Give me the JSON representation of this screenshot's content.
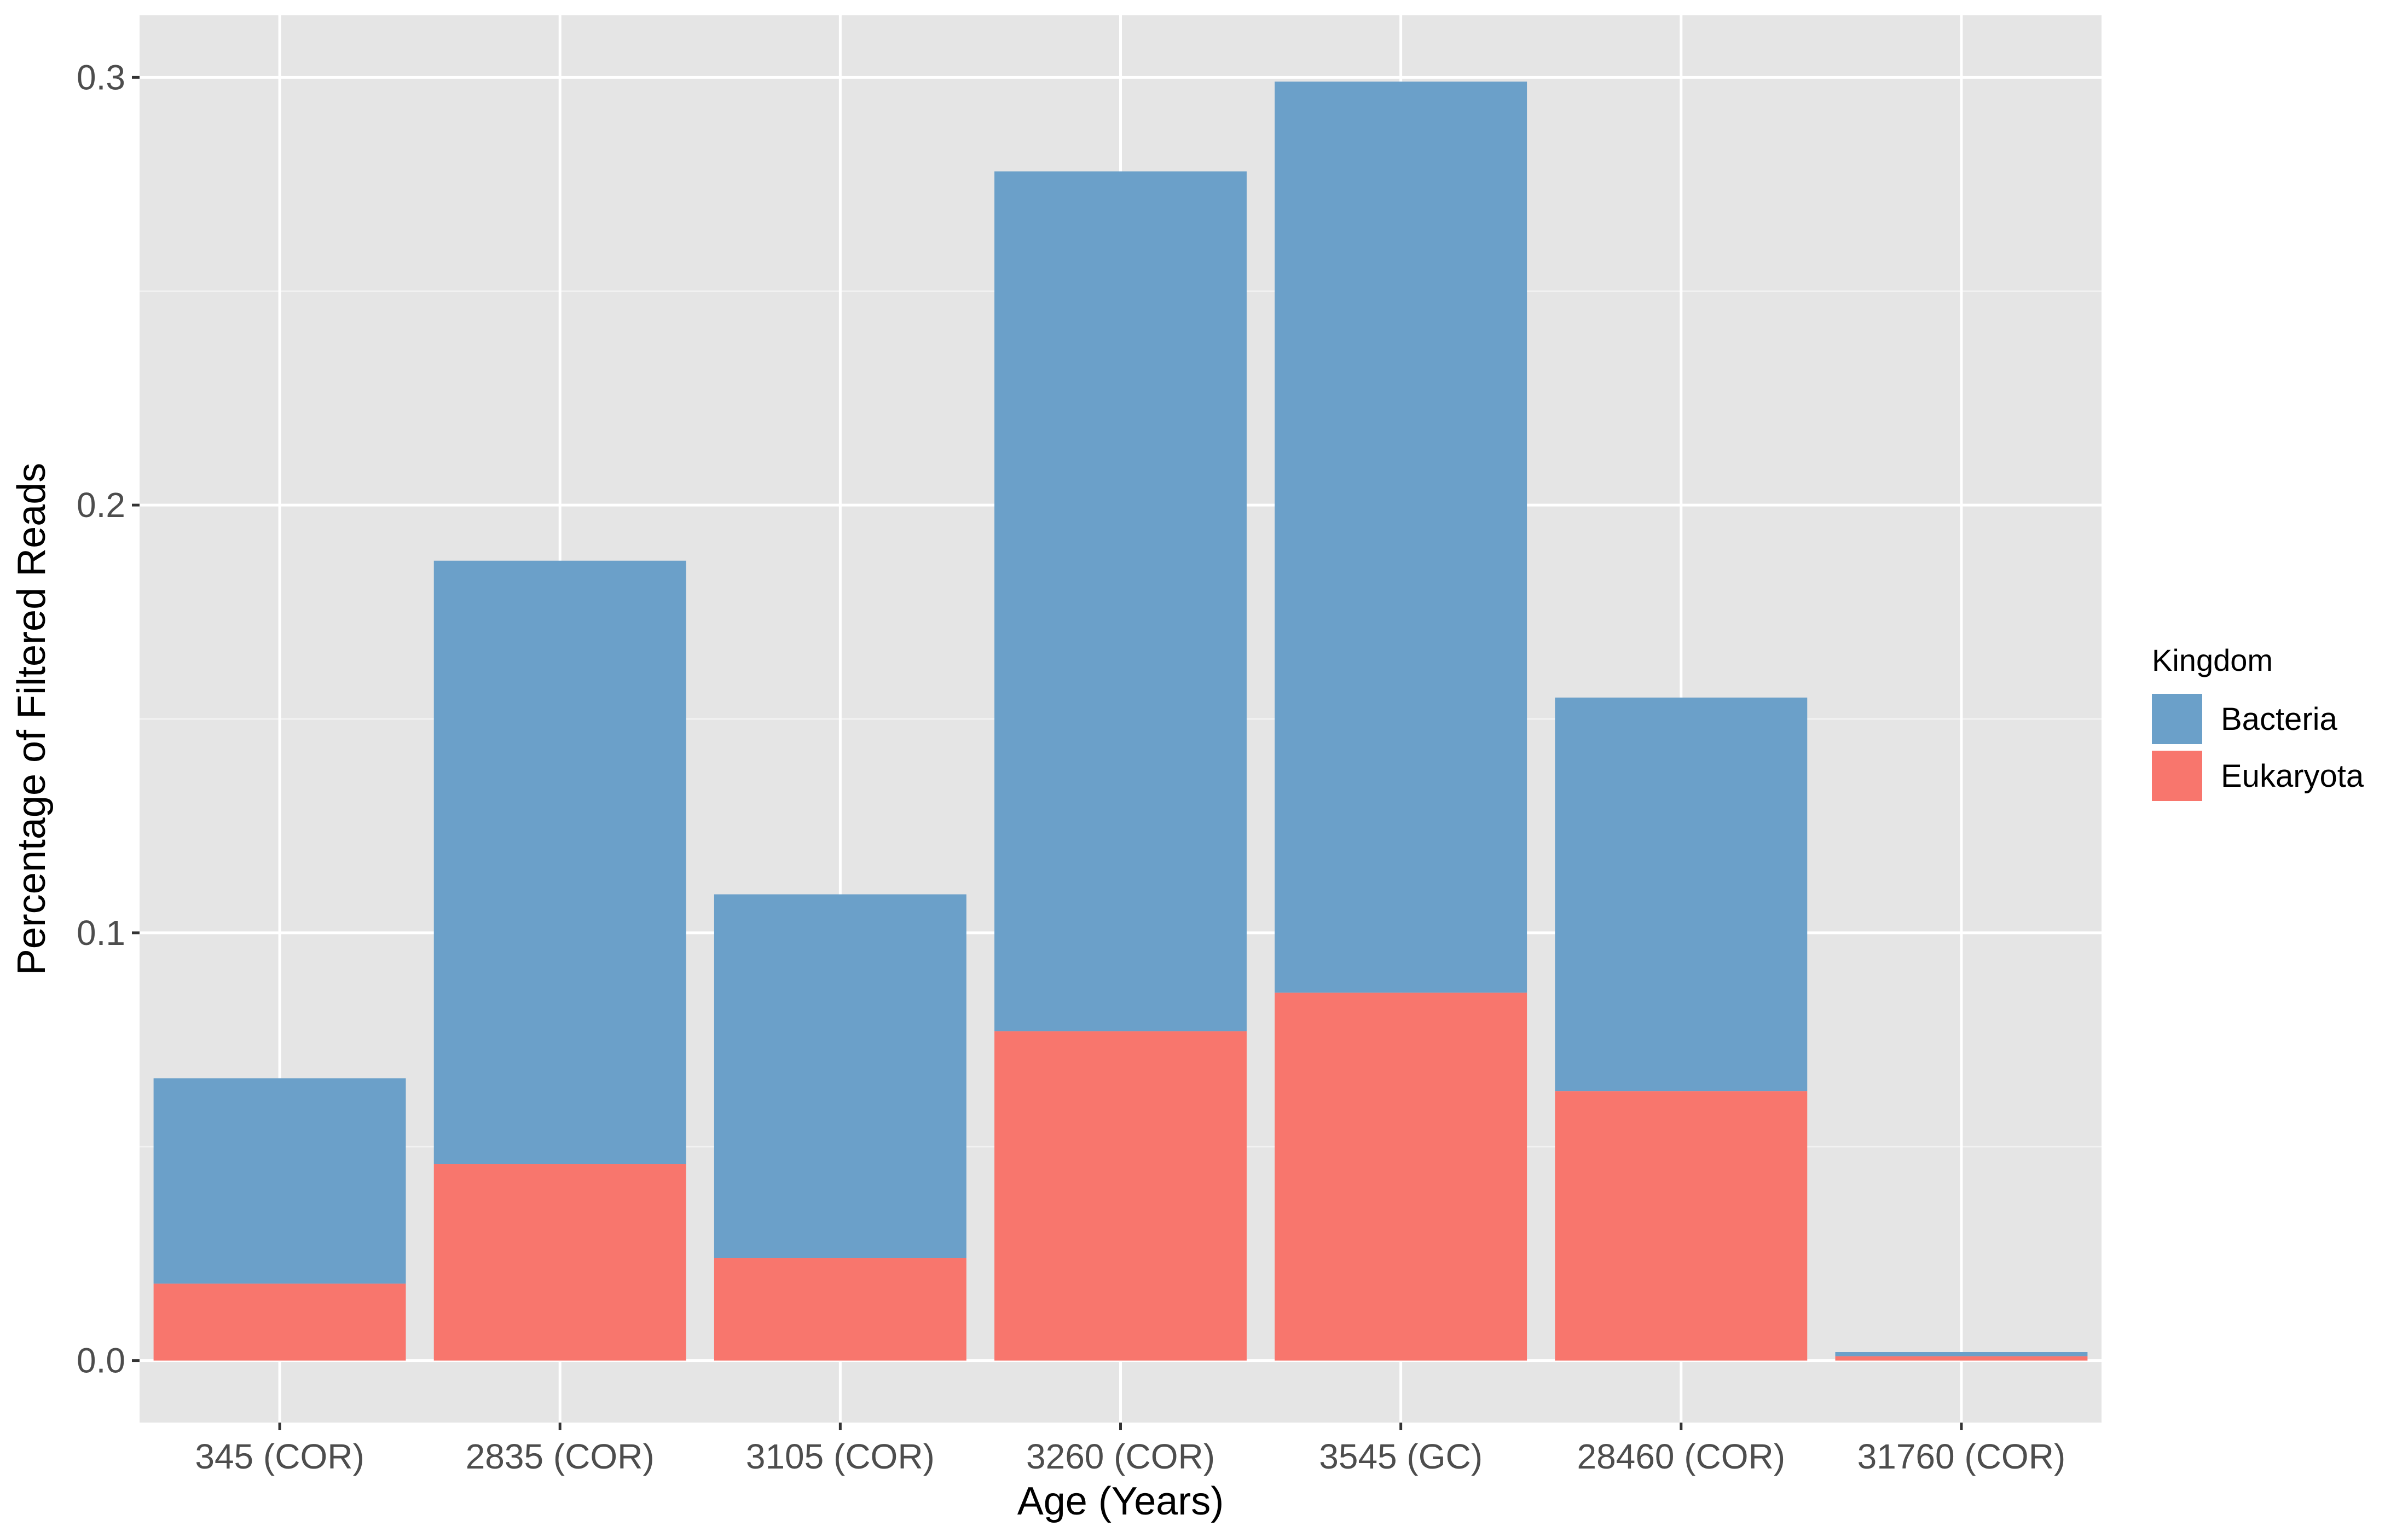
{
  "chart_data": {
    "type": "bar",
    "stacked": true,
    "title": "",
    "xlabel": "Age (Years)",
    "ylabel": "Percentage of Filtered Reads",
    "categories": [
      "345 (COR)",
      "2835 (COR)",
      "3105 (COR)",
      "3260 (COR)",
      "3545 (GC)",
      "28460 (COR)",
      "31760 (COR)"
    ],
    "series": [
      {
        "name": "Eukaryota",
        "color": "#F8766D",
        "values": [
          0.018,
          0.046,
          0.024,
          0.077,
          0.086,
          0.063,
          0.001
        ]
      },
      {
        "name": "Bacteria",
        "color": "#6BA0C9",
        "values": [
          0.048,
          0.141,
          0.085,
          0.201,
          0.213,
          0.092,
          0.001
        ]
      }
    ],
    "ylim": [
      -0.0145,
      0.3145
    ],
    "yticks": [
      0.0,
      0.1,
      0.2,
      0.3
    ],
    "ytick_labels": [
      "0.0",
      "0.1",
      "0.2",
      "0.3"
    ],
    "grid": true,
    "panel_background": "#E5E5E5",
    "legend": {
      "title": "Kingdom",
      "position": "right",
      "entries": [
        {
          "label": "Bacteria",
          "color": "#6BA0C9"
        },
        {
          "label": "Eukaryota",
          "color": "#F8766D"
        }
      ]
    }
  }
}
